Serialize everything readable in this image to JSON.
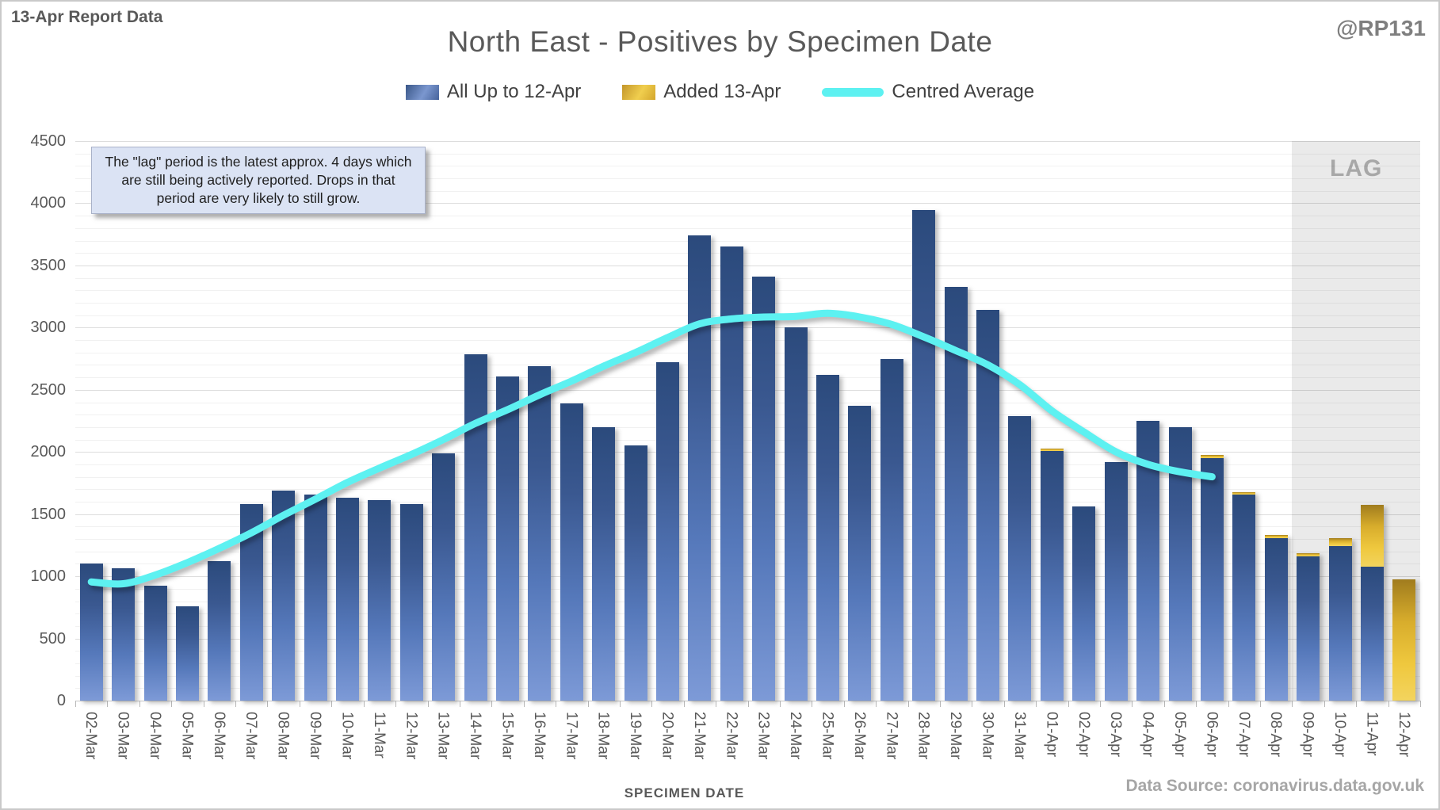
{
  "page": {
    "report_label": "13-Apr Report Data",
    "title": "North East - Positives by Specimen Date",
    "handle": "@RP131",
    "annotation": "The \"lag\" period is the latest approx. 4 days which are still being actively reported. Drops in that period are very likely to still grow.",
    "xaxis_title": "SPECIMEN DATE",
    "data_source": "Data Source: coronavirus.data.gov.uk",
    "lag_label": "LAG"
  },
  "legend": [
    {
      "label": "All Up to 12-Apr",
      "swatch": "blue-bar"
    },
    {
      "label": "Added 13-Apr",
      "swatch": "gold-bar"
    },
    {
      "label": "Centred Average",
      "swatch": "cyan-line"
    }
  ],
  "colors": {
    "bar_blue_top": "#2b4a7c",
    "bar_blue_bottom": "#7d9ad7",
    "bar_gold_top": "#a07c1e",
    "bar_gold_bottom": "#f3d45e",
    "line_cyan": "#5df1f1",
    "lag_fill": "#eaeaea",
    "text_gray": "#595959",
    "muted_gray": "#a6a6a6"
  },
  "chart_data": {
    "type": "bar",
    "title": "North East - Positives by Specimen Date",
    "xlabel": "SPECIMEN DATE",
    "ylabel": "",
    "ylim": [
      0,
      4500
    ],
    "y_major_step": 500,
    "y_minor_step": 100,
    "grid": true,
    "legend_position": "top",
    "categories": [
      "02-Mar",
      "03-Mar",
      "04-Mar",
      "05-Mar",
      "06-Mar",
      "07-Mar",
      "08-Mar",
      "09-Mar",
      "10-Mar",
      "11-Mar",
      "12-Mar",
      "13-Mar",
      "14-Mar",
      "15-Mar",
      "16-Mar",
      "17-Mar",
      "18-Mar",
      "19-Mar",
      "20-Mar",
      "21-Mar",
      "22-Mar",
      "23-Mar",
      "24-Mar",
      "25-Mar",
      "26-Mar",
      "27-Mar",
      "28-Mar",
      "29-Mar",
      "30-Mar",
      "31-Mar",
      "01-Apr",
      "02-Apr",
      "03-Apr",
      "04-Apr",
      "05-Apr",
      "06-Apr",
      "07-Apr",
      "08-Apr",
      "09-Apr",
      "10-Apr",
      "11-Apr",
      "12-Apr"
    ],
    "series": [
      {
        "name": "All Up to 12-Apr",
        "type": "bar",
        "values": [
          1100,
          1065,
          925,
          760,
          1120,
          1580,
          1690,
          1660,
          1635,
          1615,
          1580,
          1990,
          2785,
          2610,
          2690,
          2390,
          2200,
          2050,
          2720,
          3745,
          3650,
          3410,
          3000,
          2620,
          2370,
          2745,
          3945,
          3330,
          3140,
          2290,
          2010,
          1560,
          1920,
          2250,
          2200,
          1950,
          1655,
          1310,
          1160,
          1245,
          1075,
          0
        ]
      },
      {
        "name": "Added 13-Apr",
        "type": "bar",
        "stacked": true,
        "values": [
          0,
          0,
          0,
          0,
          0,
          0,
          0,
          0,
          0,
          0,
          0,
          0,
          0,
          0,
          0,
          0,
          0,
          0,
          0,
          0,
          0,
          0,
          0,
          0,
          0,
          0,
          0,
          0,
          0,
          0,
          20,
          0,
          0,
          0,
          0,
          25,
          20,
          25,
          25,
          65,
          500,
          975
        ]
      },
      {
        "name": "Centred Average",
        "type": "line",
        "values": [
          955,
          940,
          1010,
          1110,
          1225,
          1350,
          1490,
          1620,
          1755,
          1870,
          1980,
          2100,
          2230,
          2340,
          2460,
          2570,
          2690,
          2800,
          2920,
          3030,
          3070,
          3085,
          3090,
          3115,
          3085,
          3025,
          2925,
          2815,
          2700,
          2540,
          2330,
          2160,
          2000,
          1900,
          1840,
          1800,
          null,
          null,
          null,
          null,
          null,
          null
        ]
      }
    ],
    "lag_region": {
      "start_category": "09-Apr",
      "end_category": "12-Apr",
      "label": "LAG"
    },
    "annotation": "The \"lag\" period is the latest approx. 4 days which are still being actively reported. Drops in that period are very likely to still grow."
  }
}
